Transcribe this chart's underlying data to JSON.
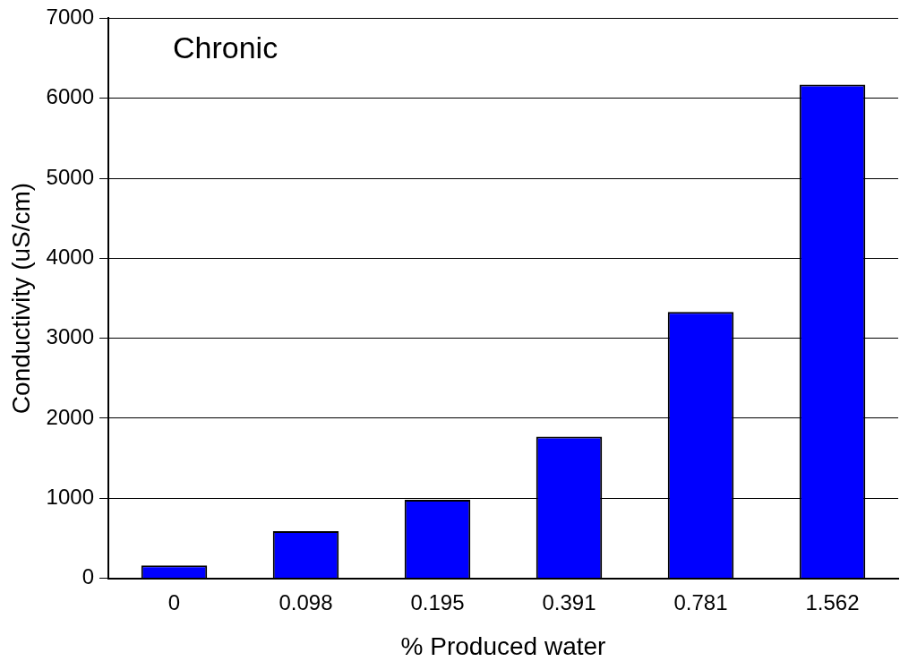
{
  "chart_data": {
    "type": "bar",
    "xlabel": "% Produced water",
    "ylabel": "Conductivity (uS/cm)",
    "annotations": [
      "Chronic"
    ],
    "categories": [
      "0",
      "0.098",
      "0.195",
      "0.391",
      "0.781",
      "1.562"
    ],
    "values": [
      160,
      590,
      980,
      1770,
      3330,
      6170
    ],
    "color": "#0000ff",
    "ylim": [
      0,
      7000
    ],
    "yticks": [
      0,
      1000,
      2000,
      3000,
      4000,
      5000,
      6000,
      7000
    ],
    "grid": "y"
  }
}
